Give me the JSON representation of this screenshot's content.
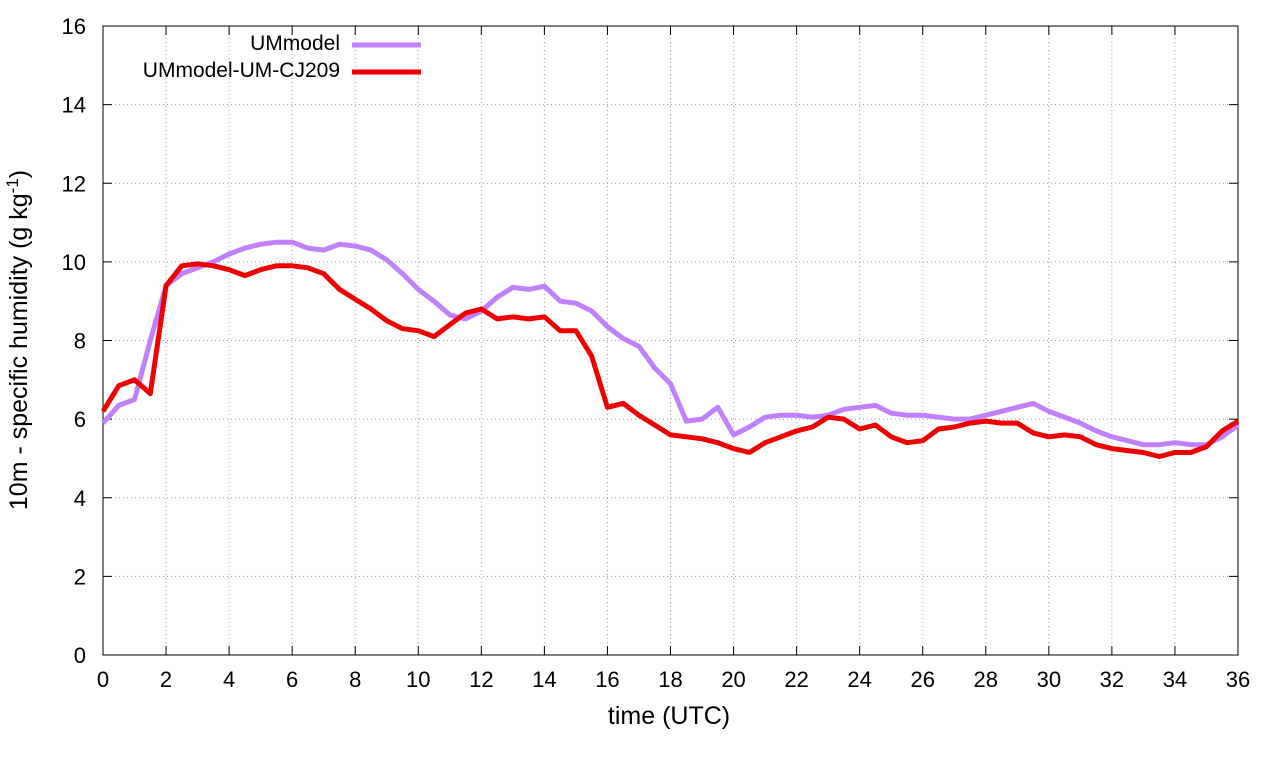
{
  "chart_data": {
    "type": "line",
    "xlabel": "time (UTC)",
    "ylabel": {
      "main": "10m - specific humidity (g kg",
      "sup": "-1",
      "end": ")"
    },
    "xlim": [
      0,
      36
    ],
    "ylim": [
      0,
      16
    ],
    "x_ticks": [
      "0",
      "2",
      "4",
      "6",
      "8",
      "10",
      "12",
      "14",
      "16",
      "18",
      "20",
      "22",
      "24",
      "26",
      "28",
      "30",
      "32",
      "34",
      "36"
    ],
    "y_ticks": [
      "0",
      "2",
      "4",
      "6",
      "8",
      "10",
      "12",
      "14",
      "16"
    ],
    "grid": true,
    "legend_position": "top-left",
    "series": [
      {
        "name": "UMmodel",
        "color": "#c080ff",
        "x": [
          0,
          0.5,
          1,
          1.5,
          2,
          2.5,
          3,
          3.5,
          4,
          4.5,
          5,
          5.5,
          6,
          6.5,
          7,
          7.5,
          8,
          8.5,
          9,
          9.5,
          10,
          10.5,
          11,
          11.5,
          12,
          12.5,
          13,
          13.5,
          14,
          14.5,
          15,
          15.5,
          16,
          16.5,
          17,
          17.5,
          18,
          18.5,
          19,
          19.5,
          20,
          20.5,
          21,
          21.5,
          22,
          22.5,
          23,
          23.5,
          24,
          24.5,
          25,
          25.5,
          26,
          26.5,
          27,
          27.5,
          28,
          28.5,
          29,
          29.5,
          30,
          30.5,
          31,
          31.5,
          32,
          32.5,
          33,
          33.5,
          34,
          34.5,
          35,
          35.5,
          36
        ],
        "y": [
          5.9,
          6.35,
          6.5,
          8.0,
          9.4,
          9.7,
          9.85,
          10.0,
          10.2,
          10.35,
          10.45,
          10.5,
          10.5,
          10.35,
          10.3,
          10.45,
          10.4,
          10.3,
          10.05,
          9.7,
          9.3,
          9.0,
          8.65,
          8.55,
          8.75,
          9.1,
          9.35,
          9.3,
          9.38,
          9.0,
          8.95,
          8.75,
          8.35,
          8.05,
          7.85,
          7.3,
          6.9,
          5.95,
          6.0,
          6.3,
          5.6,
          5.8,
          6.05,
          6.1,
          6.1,
          6.05,
          6.1,
          6.25,
          6.3,
          6.35,
          6.15,
          6.1,
          6.1,
          6.05,
          6.0,
          6.0,
          6.1,
          6.2,
          6.3,
          6.4,
          6.2,
          6.05,
          5.9,
          5.7,
          5.55,
          5.45,
          5.35,
          5.35,
          5.4,
          5.35,
          5.35,
          5.55,
          5.85
        ]
      },
      {
        "name": "UMmodel-UM-CJ209",
        "color": "#ee0000",
        "x": [
          0,
          0.5,
          1,
          1.5,
          2,
          2.5,
          3,
          3.5,
          4,
          4.5,
          5,
          5.5,
          6,
          6.5,
          7,
          7.5,
          8,
          8.5,
          9,
          9.5,
          10,
          10.5,
          11,
          11.5,
          12,
          12.5,
          13,
          13.5,
          14,
          14.5,
          15,
          15.5,
          16,
          16.5,
          17,
          17.5,
          18,
          18.5,
          19,
          19.5,
          20,
          20.5,
          21,
          21.5,
          22,
          22.5,
          23,
          23.5,
          24,
          24.5,
          25,
          25.5,
          26,
          26.5,
          27,
          27.5,
          28,
          28.5,
          29,
          29.5,
          30,
          30.5,
          31,
          31.5,
          32,
          32.5,
          33,
          33.5,
          34,
          34.5,
          35,
          35.5,
          36
        ],
        "y": [
          6.2,
          6.85,
          7.0,
          6.65,
          9.4,
          9.9,
          9.95,
          9.9,
          9.8,
          9.65,
          9.8,
          9.9,
          9.9,
          9.85,
          9.7,
          9.3,
          9.05,
          8.8,
          8.5,
          8.3,
          8.25,
          8.1,
          8.4,
          8.7,
          8.8,
          8.55,
          8.6,
          8.55,
          8.6,
          8.25,
          8.25,
          7.6,
          6.3,
          6.4,
          6.1,
          5.85,
          5.6,
          5.55,
          5.5,
          5.4,
          5.25,
          5.15,
          5.4,
          5.55,
          5.7,
          5.8,
          6.05,
          6.0,
          5.75,
          5.85,
          5.55,
          5.4,
          5.45,
          5.75,
          5.8,
          5.9,
          5.95,
          5.9,
          5.9,
          5.65,
          5.55,
          5.6,
          5.55,
          5.35,
          5.25,
          5.2,
          5.15,
          5.05,
          5.15,
          5.15,
          5.3,
          5.7,
          5.95
        ]
      }
    ]
  }
}
